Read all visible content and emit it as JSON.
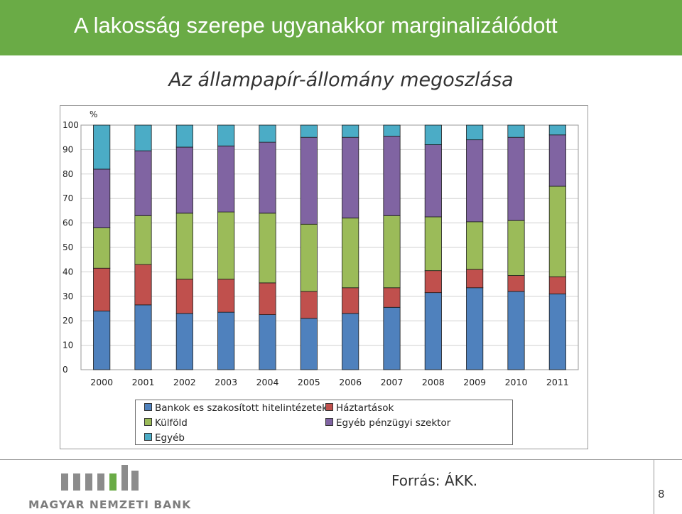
{
  "header": {
    "title": "A lakosság szerepe ugyanakkor marginalizálódott"
  },
  "footer": {
    "source": "Forrás: ÁKK.",
    "page_number": "8",
    "logo_text": "MAGYAR NEMZETI BANK"
  },
  "colors": {
    "header_bg": "#6aab46",
    "bankok": "#4f81bd",
    "haztartasok": "#c0504d",
    "kulfold": "#9bbb59",
    "egyeb_penzugyi": "#8064a2",
    "egyeb": "#4bacc6",
    "logo_gray": "#8c8c8c",
    "logo_green": "#6aab46"
  },
  "chart_data": {
    "type": "bar",
    "stacked": true,
    "title": "Az állampapír-állomány megoszlása",
    "ylabel": "%",
    "xlabel": "",
    "ylim": [
      0,
      100
    ],
    "yticks": [
      "0",
      "10",
      "20",
      "30",
      "40",
      "50",
      "60",
      "70",
      "80",
      "90",
      "100"
    ],
    "grid": true,
    "legend_position": "bottom",
    "categories": [
      "2000",
      "2001",
      "2002",
      "2003",
      "2004",
      "2005",
      "2006",
      "2007",
      "2008",
      "2009",
      "2010",
      "2011"
    ],
    "series": [
      {
        "name": "Bankok es szakosított hitelintézetek",
        "color_key": "bankok",
        "values": [
          24,
          26.5,
          23,
          23.5,
          22.5,
          21,
          23,
          25.5,
          31.5,
          33.5,
          32,
          31
        ]
      },
      {
        "name": "Háztartások",
        "color_key": "haztartasok",
        "values": [
          17.5,
          16.5,
          14,
          13.5,
          13,
          11,
          10.5,
          8,
          9,
          7.5,
          6.5,
          7
        ]
      },
      {
        "name": "Külföld",
        "color_key": "kulfold",
        "values": [
          16.5,
          20,
          27,
          27.5,
          28.5,
          27.5,
          28.5,
          29.5,
          22,
          19.5,
          22.5,
          37
        ]
      },
      {
        "name": "Egyéb pénzügyi szektor",
        "color_key": "egyeb_penzugyi",
        "values": [
          24,
          26.5,
          27,
          27,
          29,
          35.5,
          33,
          32.5,
          29.5,
          33.5,
          34,
          21
        ]
      },
      {
        "name": "Egyéb",
        "color_key": "egyeb",
        "values": [
          18,
          10.5,
          9,
          8.5,
          7,
          5,
          5,
          4.5,
          8,
          6,
          5,
          4
        ]
      }
    ]
  }
}
